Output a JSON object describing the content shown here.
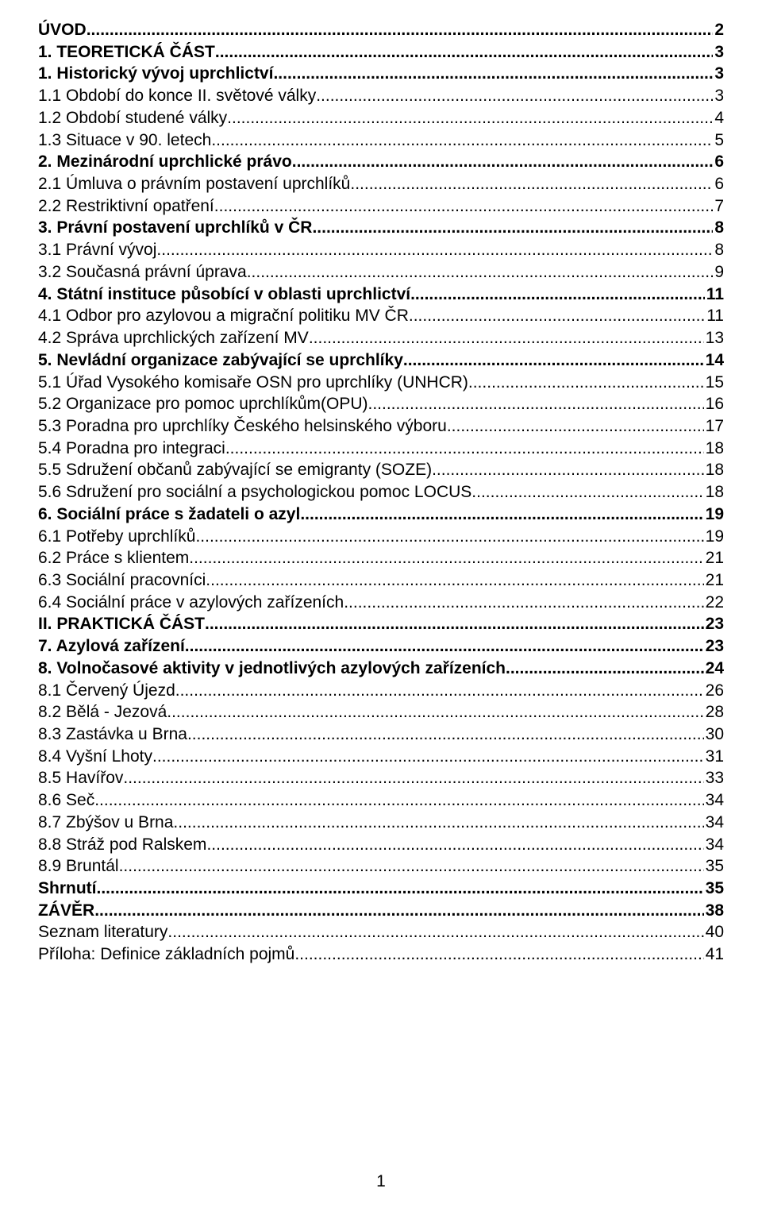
{
  "typography": {
    "font_family": "Arial",
    "font_size_pt": 16,
    "line_height": 1.32,
    "color": "#000000",
    "background": "#ffffff"
  },
  "toc": [
    {
      "label": "ÚVOD",
      "page": "2",
      "bold": true
    },
    {
      "label": "1. TEORETICKÁ ČÁST",
      "page": "3",
      "bold": true
    },
    {
      "label": "1. Historický vývoj uprchlictví",
      "page": "3",
      "bold": true
    },
    {
      "label": "1.1 Období do konce II. světové války",
      "page": "3",
      "bold": false
    },
    {
      "label": "1.2 Období studené války",
      "page": "4",
      "bold": false
    },
    {
      "label": "1.3 Situace v 90. letech",
      "page": "5",
      "bold": false
    },
    {
      "label": "2. Mezinárodní uprchlické právo",
      "page": "6",
      "bold": true
    },
    {
      "label": "2.1 Úmluva o právním postavení uprchlíků",
      "page": "6",
      "bold": false
    },
    {
      "label": "2.2 Restriktivní opatření",
      "page": "7",
      "bold": false
    },
    {
      "label": "3. Právní postavení uprchlíků v ČR",
      "page": "8",
      "bold": true
    },
    {
      "label": "3.1 Právní vývoj",
      "page": "8",
      "bold": false
    },
    {
      "label": "3.2 Současná právní úprava",
      "page": "9",
      "bold": false
    },
    {
      "label": "4. Státní instituce působící v oblasti uprchlictví",
      "page": "11",
      "bold": true
    },
    {
      "label": "4.1 Odbor pro azylovou a migrační politiku MV ČR",
      "page": "11",
      "bold": false
    },
    {
      "label": "4.2 Správa uprchlických zařízení MV",
      "page": "13",
      "bold": false
    },
    {
      "label": "5. Nevládní organizace zabývající se uprchlíky",
      "page": "14",
      "bold": true
    },
    {
      "label": "5.1 Úřad Vysokého komisaře OSN pro uprchlíky (UNHCR)",
      "page": "15",
      "bold": false
    },
    {
      "label": "5.2 Organizace pro pomoc uprchlíkům(OPU)",
      "page": "16",
      "bold": false
    },
    {
      "label": "5.3 Poradna pro uprchlíky Českého helsinského výboru",
      "page": "17",
      "bold": false
    },
    {
      "label": "5.4 Poradna pro integraci",
      "page": "18",
      "bold": false
    },
    {
      "label": "5.5 Sdružení občanů zabývající se emigranty (SOZE)",
      "page": "18",
      "bold": false
    },
    {
      "label": "5.6 Sdružení pro sociální a psychologickou pomoc LOCUS",
      "page": "18",
      "bold": false
    },
    {
      "label": "6. Sociální práce s žadateli o azyl",
      "page": "19",
      "bold": true
    },
    {
      "label": "6.1 Potřeby uprchlíků",
      "page": "19",
      "bold": false
    },
    {
      "label": "6.2 Práce s klientem",
      "page": "21",
      "bold": false
    },
    {
      "label": "6.3 Sociální pracovníci",
      "page": "21",
      "bold": false
    },
    {
      "label": "6.4 Sociální práce v azylových zařízeních",
      "page": "22",
      "bold": false
    },
    {
      "label": "II. PRAKTICKÁ ČÁST",
      "page": "23",
      "bold": true
    },
    {
      "label": "7. Azylová zařízení",
      "page": "23",
      "bold": true
    },
    {
      "label": "8. Volnočasové aktivity v jednotlivých azylových zařízeních",
      "page": "24",
      "bold": true
    },
    {
      "label": "8.1 Červený Újezd",
      "page": "26",
      "bold": false
    },
    {
      "label": "8.2 Bělá - Jezová",
      "page": "28",
      "bold": false
    },
    {
      "label": "8.3 Zastávka u Brna",
      "page": "30",
      "bold": false
    },
    {
      "label": "8.4 Vyšní Lhoty",
      "page": "31",
      "bold": false
    },
    {
      "label": "8.5 Havířov",
      "page": "33",
      "bold": false
    },
    {
      "label": "8.6 Seč",
      "page": "34",
      "bold": false
    },
    {
      "label": "8.7 Zbýšov u Brna",
      "page": "34",
      "bold": false
    },
    {
      "label": "8.8 Stráž pod Ralskem",
      "page": "34",
      "bold": false
    },
    {
      "label": "8.9 Bruntál",
      "page": "35",
      "bold": false
    },
    {
      "label": "Shrnutí",
      "page": "35",
      "bold": true
    },
    {
      "label": "ZÁVĚR",
      "page": "38",
      "bold": true
    },
    {
      "label": "Seznam literatury",
      "page": "40",
      "bold": false
    },
    {
      "label": "Příloha: Definice základních pojmů",
      "page": "41",
      "bold": false
    }
  ],
  "page_number": "1"
}
